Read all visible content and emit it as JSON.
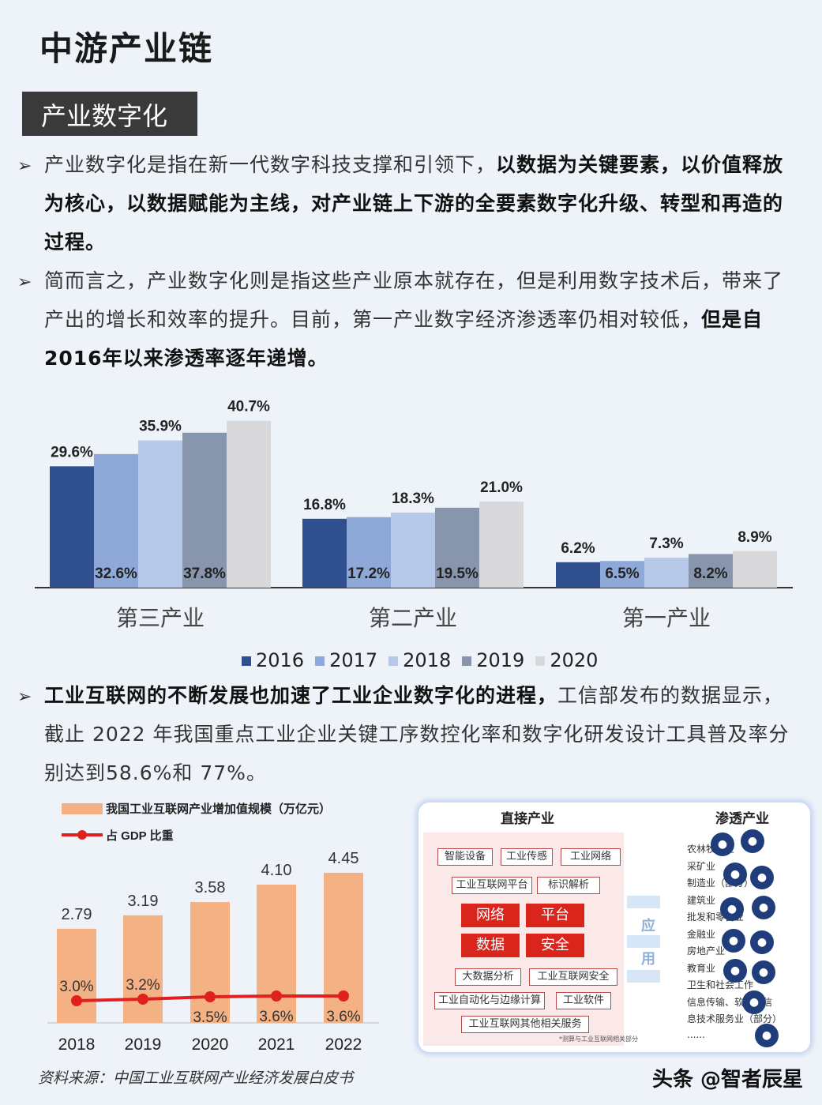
{
  "title": "中游产业链",
  "section_label": "产业数字化",
  "bullet_glyph": "➢",
  "paragraphs": {
    "p1": {
      "normal": "产业数字化是指在新一代数字科技支撑和引领下，",
      "bold": "以数据为关键要素，以价值释放为核心，以数据赋能为主线，对产业链上下游的全要素数字化升级、转型和再造的过程。"
    },
    "p2": {
      "normal": "简而言之，产业数字化则是指这些产业原本就存在，但是利用数字技术后，带来了产出的增长和效率的提升。目前，第一产业数字经济渗透率仍相对较低，",
      "bold": "但是自2016年以来渗透率逐年递增。"
    },
    "p3": {
      "bold": "工业互联网的不断发展也加速了工业企业数字化的进程，",
      "normal": "工信部发布的数据显示，截止 2022 年我国重点工业企业关键工序数控化率和数字化研发设计工具普及率分别达到58.6%和 77%。"
    }
  },
  "chart_data": [
    {
      "type": "bar",
      "title": "",
      "categories": [
        "第三产业",
        "第二产业",
        "第一产业"
      ],
      "series": [
        {
          "name": "2016",
          "values": [
            29.6,
            16.8,
            6.2
          ],
          "labels": [
            "29.6%",
            "16.8%",
            "6.2%"
          ],
          "color": "#2f4f8f"
        },
        {
          "name": "2017",
          "values": [
            32.6,
            17.2,
            6.5
          ],
          "labels": [
            "32.6%",
            "17.2%",
            "6.5%"
          ],
          "color": "#8ea8d8"
        },
        {
          "name": "2018",
          "values": [
            35.9,
            18.3,
            7.3
          ],
          "labels": [
            "35.9%",
            "18.3%",
            "7.3%"
          ],
          "color": "#b6c9e8"
        },
        {
          "name": "2019",
          "values": [
            37.8,
            19.5,
            8.2
          ],
          "labels": [
            "37.8%",
            "19.5%",
            "8.2%"
          ],
          "color": "#8796ad"
        },
        {
          "name": "2020",
          "values": [
            40.7,
            21.0,
            8.9
          ],
          "labels": [
            "40.7%",
            "21.0%",
            "8.9%"
          ],
          "color": "#d9d9db"
        }
      ],
      "ylim": [
        0,
        42
      ],
      "legend_position": "bottom"
    },
    {
      "type": "bar+line",
      "title": "",
      "categories": [
        "2018",
        "2019",
        "2020",
        "2021",
        "2022"
      ],
      "bar_series": {
        "name": "我国工业互联网产业增加值规模（万亿元）",
        "values": [
          2.79,
          3.19,
          3.58,
          4.1,
          4.45
        ],
        "labels": [
          "2.79",
          "3.19",
          "3.58",
          "4.10",
          "4.45"
        ],
        "color": "#f4b183"
      },
      "line_series": {
        "name": "占 GDP 比重",
        "values": [
          3.0,
          3.2,
          3.5,
          3.6,
          3.6
        ],
        "labels": [
          "3.0%",
          "3.2%",
          "3.5%",
          "3.6%",
          "3.6%"
        ],
        "color": "#e02020"
      },
      "ylim": [
        0,
        5
      ],
      "legend_position": "top-left"
    }
  ],
  "diagram": {
    "left_title": "直接产业",
    "right_title": "渗透产业",
    "tags_row1": [
      "智能设备",
      "工业传感",
      "工业网络"
    ],
    "tags_row2": [
      "工业互联网平台",
      "标识解析"
    ],
    "red_blocks": [
      "网络",
      "平台",
      "数据",
      "安全"
    ],
    "tags_row3": [
      "大数据分析",
      "工业互联网安全"
    ],
    "tags_row4": [
      "工业自动化与边缘计算",
      "工业软件"
    ],
    "tags_row5": [
      "工业互联网其他相关服务"
    ],
    "footnote": "*测算与工业互联网相关部分",
    "apply_label_1": "应",
    "apply_label_2": "用",
    "industries": [
      "农林牧渔业",
      "采矿业",
      "制造业（部分）",
      "建筑业",
      "批发和零售业",
      "金融业",
      "房地产业",
      "教育业",
      "卫生和社会工作",
      "信息传输、软件和信",
      "息技术服务业（部分）",
      "......"
    ]
  },
  "source": "资料来源：中国工业互联网产业经济发展白皮书",
  "watermark": "头条 @智者辰星"
}
